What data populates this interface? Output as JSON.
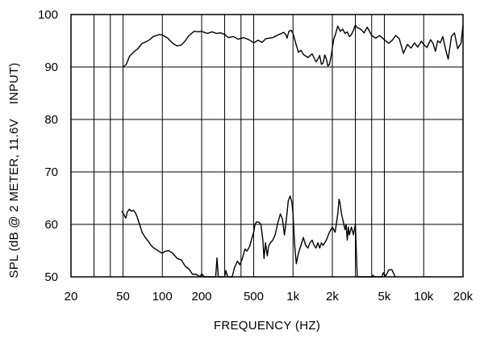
{
  "chart_data": {
    "type": "line",
    "title": "",
    "xlabel": "FREQUENCY  (HZ)",
    "ylabel": "SPL (dB @ 2 METER, 11.6V    INPUT)",
    "x_scale": "log",
    "xlim": [
      20,
      20000
    ],
    "ylim": [
      50,
      100
    ],
    "grid": true,
    "x_ticks": [
      {
        "value": 20,
        "label": "20"
      },
      {
        "value": 50,
        "label": "50"
      },
      {
        "value": 100,
        "label": "100"
      },
      {
        "value": 200,
        "label": "200"
      },
      {
        "value": 500,
        "label": "500"
      },
      {
        "value": 1000,
        "label": "1k"
      },
      {
        "value": 2000,
        "label": "2k"
      },
      {
        "value": 5000,
        "label": "5k"
      },
      {
        "value": 10000,
        "label": "10k"
      },
      {
        "value": 20000,
        "label": "20k"
      }
    ],
    "x_gridlines": [
      20,
      30,
      40,
      50,
      100,
      200,
      300,
      400,
      500,
      1000,
      2000,
      3000,
      4000,
      5000,
      10000,
      20000
    ],
    "y_ticks": [
      {
        "value": 50,
        "label": "50"
      },
      {
        "value": 60,
        "label": "60"
      },
      {
        "value": 70,
        "label": "70"
      },
      {
        "value": 80,
        "label": "80"
      },
      {
        "value": 90,
        "label": "90"
      },
      {
        "value": 100,
        "label": "100"
      }
    ],
    "series": [
      {
        "points": [
          [
            50,
            90
          ],
          [
            53,
            90.5
          ],
          [
            56,
            92
          ],
          [
            60,
            92.8
          ],
          [
            65,
            93.5
          ],
          [
            70,
            94.5
          ],
          [
            75,
            94.8
          ],
          [
            80,
            95.2
          ],
          [
            85,
            95.8
          ],
          [
            90,
            96
          ],
          [
            95,
            96.2
          ],
          [
            100,
            96.1
          ],
          [
            110,
            95.5
          ],
          [
            120,
            94.5
          ],
          [
            130,
            94
          ],
          [
            140,
            94.2
          ],
          [
            150,
            95
          ],
          [
            160,
            96
          ],
          [
            175,
            96.8
          ],
          [
            190,
            96.7
          ],
          [
            200,
            96.8
          ],
          [
            220,
            96.4
          ],
          [
            240,
            96.7
          ],
          [
            260,
            96.4
          ],
          [
            280,
            96.5
          ],
          [
            300,
            96.2
          ],
          [
            320,
            95.6
          ],
          [
            350,
            95.8
          ],
          [
            380,
            95.3
          ],
          [
            420,
            95.6
          ],
          [
            460,
            95.2
          ],
          [
            500,
            94.6
          ],
          [
            540,
            95.1
          ],
          [
            580,
            94.7
          ],
          [
            620,
            95.4
          ],
          [
            660,
            95.5
          ],
          [
            700,
            95.6
          ],
          [
            750,
            96
          ],
          [
            800,
            96.3
          ],
          [
            850,
            96.6
          ],
          [
            880,
            96.2
          ],
          [
            900,
            95.5
          ],
          [
            930,
            96.8
          ],
          [
            970,
            97
          ],
          [
            1000,
            96.4
          ],
          [
            1050,
            94.5
          ],
          [
            1100,
            92.8
          ],
          [
            1150,
            93.2
          ],
          [
            1200,
            92.4
          ],
          [
            1300,
            91.8
          ],
          [
            1400,
            92.5
          ],
          [
            1500,
            91
          ],
          [
            1550,
            91.5
          ],
          [
            1600,
            92.2
          ],
          [
            1650,
            90.5
          ],
          [
            1700,
            90.8
          ],
          [
            1750,
            92.3
          ],
          [
            1800,
            91.5
          ],
          [
            1850,
            90.2
          ],
          [
            1900,
            90.5
          ],
          [
            1950,
            91.8
          ],
          [
            2000,
            93.6
          ],
          [
            2050,
            95.3
          ],
          [
            2100,
            96
          ],
          [
            2200,
            97.8
          ],
          [
            2300,
            96.8
          ],
          [
            2400,
            97.2
          ],
          [
            2500,
            96.4
          ],
          [
            2600,
            96.7
          ],
          [
            2700,
            95.8
          ],
          [
            2800,
            96.2
          ],
          [
            2900,
            97
          ],
          [
            3000,
            98
          ],
          [
            3100,
            97.5
          ],
          [
            3300,
            97.2
          ],
          [
            3500,
            96.5
          ],
          [
            3700,
            97.6
          ],
          [
            4000,
            96
          ],
          [
            4300,
            95.5
          ],
          [
            4600,
            96
          ],
          [
            5000,
            95.2
          ],
          [
            5400,
            94.5
          ],
          [
            5800,
            95.2
          ],
          [
            6100,
            96
          ],
          [
            6500,
            95.4
          ],
          [
            7000,
            92.6
          ],
          [
            7500,
            94.3
          ],
          [
            8000,
            93.6
          ],
          [
            8500,
            94.6
          ],
          [
            9000,
            93.8
          ],
          [
            9600,
            94.9
          ],
          [
            10000,
            94.3
          ],
          [
            10600,
            93.7
          ],
          [
            11300,
            95.2
          ],
          [
            11800,
            94.5
          ],
          [
            12300,
            93
          ],
          [
            12800,
            95
          ],
          [
            13400,
            94.6
          ],
          [
            14000,
            95.8
          ],
          [
            14600,
            93.7
          ],
          [
            15400,
            91.5
          ],
          [
            16300,
            95.8
          ],
          [
            17200,
            96.5
          ],
          [
            18200,
            93.5
          ],
          [
            19300,
            94.5
          ],
          [
            20000,
            98
          ]
        ]
      },
      {
        "points": [
          [
            49,
            62.5
          ],
          [
            51,
            61.8
          ],
          [
            52.5,
            61.2
          ],
          [
            54,
            62.4
          ],
          [
            56,
            62.9
          ],
          [
            58,
            62.5
          ],
          [
            60,
            62.7
          ],
          [
            62,
            62.3
          ],
          [
            64,
            61.5
          ],
          [
            67,
            60
          ],
          [
            70,
            58.5
          ],
          [
            74,
            57.5
          ],
          [
            78,
            56.8
          ],
          [
            82,
            56
          ],
          [
            86,
            55.5
          ],
          [
            90,
            55.2
          ],
          [
            95,
            54.8
          ],
          [
            100,
            54.5
          ],
          [
            106,
            54.9
          ],
          [
            112,
            55
          ],
          [
            120,
            54.5
          ],
          [
            130,
            53.5
          ],
          [
            140,
            53.2
          ],
          [
            150,
            52
          ],
          [
            160,
            51.5
          ],
          [
            170,
            50.5
          ],
          [
            180,
            50.5
          ],
          [
            190,
            50.2
          ],
          [
            195,
            49.4
          ],
          [
            200,
            50.6
          ],
          [
            210,
            49.6
          ],
          [
            216,
            48.5
          ],
          [
            240,
            49.6
          ],
          [
            250,
            48.5
          ],
          [
            256,
            49.7
          ],
          [
            262,
            53.6
          ],
          [
            268,
            49.6
          ],
          [
            276,
            48.5
          ],
          [
            300,
            48.5
          ],
          [
            306,
            51.2
          ],
          [
            316,
            49
          ],
          [
            330,
            48.5
          ],
          [
            342,
            49.2
          ],
          [
            357,
            51.8
          ],
          [
            376,
            53
          ],
          [
            392,
            52.3
          ],
          [
            410,
            53.5
          ],
          [
            428,
            55.3
          ],
          [
            444,
            54.9
          ],
          [
            466,
            55.8
          ],
          [
            484,
            57.3
          ],
          [
            500,
            58.5
          ],
          [
            512,
            60
          ],
          [
            528,
            60.5
          ],
          [
            548,
            60.4
          ],
          [
            568,
            60
          ],
          [
            588,
            57
          ],
          [
            600,
            53.5
          ],
          [
            616,
            56.5
          ],
          [
            636,
            54
          ],
          [
            650,
            55.8
          ],
          [
            672,
            56.5
          ],
          [
            700,
            57
          ],
          [
            730,
            58
          ],
          [
            760,
            60
          ],
          [
            800,
            62
          ],
          [
            830,
            61
          ],
          [
            860,
            58
          ],
          [
            890,
            61
          ],
          [
            920,
            64.5
          ],
          [
            950,
            65.4
          ],
          [
            980,
            64.3
          ],
          [
            1000,
            62
          ],
          [
            1030,
            56
          ],
          [
            1060,
            52.5
          ],
          [
            1100,
            54.5
          ],
          [
            1150,
            56
          ],
          [
            1200,
            57.5
          ],
          [
            1250,
            56
          ],
          [
            1300,
            55.5
          ],
          [
            1350,
            56.5
          ],
          [
            1400,
            57
          ],
          [
            1450,
            56
          ],
          [
            1500,
            55.5
          ],
          [
            1550,
            56.5
          ],
          [
            1600,
            55.5
          ],
          [
            1650,
            56.5
          ],
          [
            1700,
            56
          ],
          [
            1800,
            57
          ],
          [
            1900,
            58.5
          ],
          [
            2000,
            59.5
          ],
          [
            2100,
            58.5
          ],
          [
            2200,
            62
          ],
          [
            2250,
            64.8
          ],
          [
            2300,
            63.8
          ],
          [
            2350,
            62
          ],
          [
            2400,
            61
          ],
          [
            2500,
            59
          ],
          [
            2550,
            60
          ],
          [
            2600,
            57
          ],
          [
            2650,
            59.5
          ],
          [
            2700,
            58
          ],
          [
            2800,
            59.5
          ],
          [
            2900,
            58
          ],
          [
            3000,
            60
          ],
          [
            3050,
            55
          ],
          [
            3100,
            50
          ],
          [
            3150,
            48.5
          ],
          [
            3900,
            48.5
          ],
          [
            4000,
            49.5
          ],
          [
            4100,
            50.3
          ],
          [
            4200,
            49.2
          ],
          [
            4350,
            48.5
          ],
          [
            4700,
            48.5
          ],
          [
            4800,
            49
          ],
          [
            4900,
            50.8
          ],
          [
            5100,
            50.1
          ],
          [
            5400,
            51.3
          ],
          [
            5700,
            51.4
          ],
          [
            6000,
            50.2
          ],
          [
            6100,
            48.5
          ]
        ]
      }
    ]
  }
}
